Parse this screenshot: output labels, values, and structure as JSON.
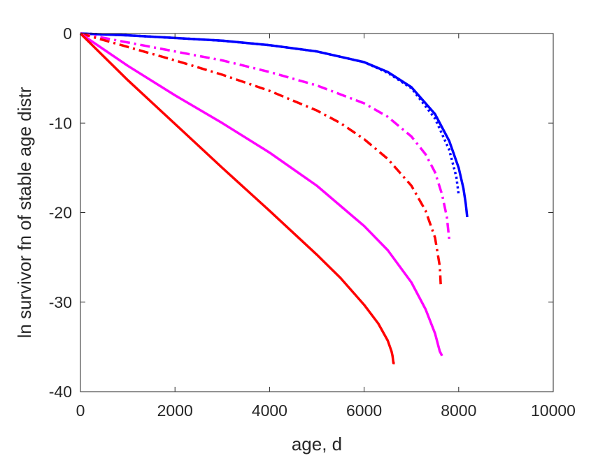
{
  "chart_data": {
    "type": "line",
    "title": "",
    "xlabel": "age, d",
    "ylabel": "ln survivor fn of stable age distr",
    "xlim": [
      0,
      10000
    ],
    "ylim": [
      -40,
      0
    ],
    "xticks": [
      0,
      2000,
      4000,
      6000,
      8000,
      10000
    ],
    "yticks": [
      0,
      -10,
      -20,
      -30,
      -40
    ],
    "xtick_labels": [
      "0",
      "2000",
      "4000",
      "6000",
      "8000",
      "10000"
    ],
    "ytick_labels": [
      "0",
      "-10",
      "-20",
      "-30",
      "-40"
    ],
    "grid": false,
    "legend": "none",
    "series": [
      {
        "color": "#0000ff",
        "style": "solid",
        "x": [
          0,
          1000,
          2000,
          3000,
          4000,
          5000,
          6000,
          6500,
          7000,
          7500,
          7800,
          8000,
          8100,
          8150,
          8180
        ],
        "y": [
          0,
          -0.2,
          -0.5,
          -0.8,
          -1.3,
          -2.0,
          -3.2,
          -4.3,
          -6.0,
          -9.0,
          -12.0,
          -15.0,
          -17.3,
          -19.0,
          -20.5
        ]
      },
      {
        "color": "#0000ff",
        "style": "dotted",
        "x": [
          0,
          1000,
          2000,
          3000,
          4000,
          5000,
          6000,
          6500,
          7000,
          7500,
          7800,
          7950,
          8000
        ],
        "y": [
          0,
          -0.2,
          -0.5,
          -0.8,
          -1.3,
          -2.0,
          -3.2,
          -4.4,
          -6.1,
          -9.5,
          -13.0,
          -16.0,
          -18.0
        ]
      },
      {
        "color": "#ff00ff",
        "style": "dashdot",
        "x": [
          0,
          1000,
          2000,
          3000,
          4000,
          5000,
          6000,
          6500,
          7000,
          7300,
          7500,
          7650,
          7750,
          7800
        ],
        "y": [
          0,
          -1.0,
          -2.0,
          -3.0,
          -4.3,
          -5.8,
          -7.8,
          -9.3,
          -11.5,
          -13.5,
          -15.5,
          -18.0,
          -20.5,
          -23.0
        ]
      },
      {
        "color": "#ff0000",
        "style": "dashdot",
        "x": [
          0,
          1000,
          2000,
          3000,
          4000,
          5000,
          5500,
          6000,
          6500,
          7000,
          7300,
          7500,
          7600,
          7620
        ],
        "y": [
          0,
          -1.5,
          -3.0,
          -4.6,
          -6.4,
          -8.6,
          -10.0,
          -11.8,
          -14.0,
          -17.0,
          -19.8,
          -22.8,
          -26.0,
          -28.0
        ]
      },
      {
        "color": "#ff00ff",
        "style": "solid",
        "x": [
          0,
          1000,
          2000,
          3000,
          4000,
          5000,
          6000,
          6500,
          7000,
          7300,
          7500,
          7600,
          7650
        ],
        "y": [
          0,
          -3.6,
          -6.9,
          -10.0,
          -13.3,
          -17.0,
          -21.5,
          -24.2,
          -27.8,
          -30.8,
          -33.5,
          -35.5,
          -36.0
        ]
      },
      {
        "color": "#ff0000",
        "style": "solid",
        "x": [
          0,
          1000,
          2000,
          3000,
          4000,
          5000,
          5500,
          6000,
          6300,
          6500,
          6580,
          6600,
          6620,
          6650
        ],
        "y": [
          0,
          -5.2,
          -10.1,
          -15.0,
          -19.8,
          -24.7,
          -27.3,
          -30.3,
          -32.4,
          -34.3,
          -35.5,
          -36.0,
          -36.8,
          -36.8
        ]
      }
    ]
  }
}
